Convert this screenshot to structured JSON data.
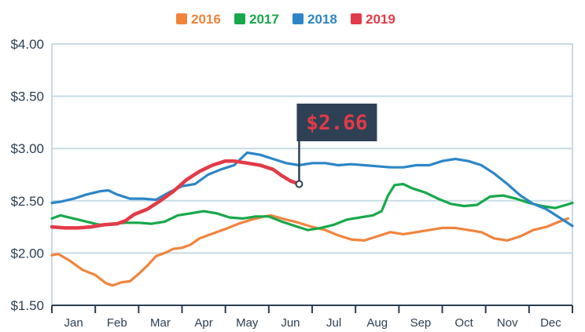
{
  "chart_data": {
    "type": "line",
    "ylim": [
      1.5,
      4.0
    ],
    "y_ticks": [
      "$1.50",
      "$2.00",
      "$2.50",
      "$3.00",
      "$3.50",
      "$4.00"
    ],
    "y_tick_values": [
      1.5,
      2.0,
      2.5,
      3.0,
      3.5,
      4.0
    ],
    "months": [
      "Jan",
      "Feb",
      "Mar",
      "Apr",
      "May",
      "Jun",
      "Jul",
      "Aug",
      "Sep",
      "Oct",
      "Nov",
      "Dec"
    ],
    "x_unit": "month (0 = Jan 1, 12 = Dec 31)",
    "xlim": [
      0,
      12
    ],
    "grid": true,
    "legend_position": "top-center",
    "series": [
      {
        "name": "2016",
        "color": "#f0843c",
        "points": [
          [
            0,
            1.98
          ],
          [
            0.15,
            1.99
          ],
          [
            0.4,
            1.93
          ],
          [
            0.7,
            1.84
          ],
          [
            1.0,
            1.79
          ],
          [
            1.25,
            1.71
          ],
          [
            1.4,
            1.69
          ],
          [
            1.6,
            1.72
          ],
          [
            1.8,
            1.73
          ],
          [
            2.0,
            1.8
          ],
          [
            2.2,
            1.88
          ],
          [
            2.4,
            1.97
          ],
          [
            2.6,
            2.0
          ],
          [
            2.8,
            2.04
          ],
          [
            3.0,
            2.05
          ],
          [
            3.2,
            2.08
          ],
          [
            3.4,
            2.14
          ],
          [
            3.6,
            2.17
          ],
          [
            3.8,
            2.2
          ],
          [
            4.0,
            2.23
          ],
          [
            4.3,
            2.28
          ],
          [
            4.6,
            2.32
          ],
          [
            4.9,
            2.35
          ],
          [
            5.05,
            2.36
          ],
          [
            5.3,
            2.33
          ],
          [
            5.6,
            2.3
          ],
          [
            6.0,
            2.25
          ],
          [
            6.3,
            2.22
          ],
          [
            6.6,
            2.17
          ],
          [
            6.9,
            2.13
          ],
          [
            7.2,
            2.12
          ],
          [
            7.5,
            2.16
          ],
          [
            7.8,
            2.2
          ],
          [
            8.1,
            2.18
          ],
          [
            8.4,
            2.2
          ],
          [
            8.7,
            2.22
          ],
          [
            9.0,
            2.24
          ],
          [
            9.3,
            2.24
          ],
          [
            9.6,
            2.22
          ],
          [
            9.9,
            2.2
          ],
          [
            10.2,
            2.14
          ],
          [
            10.5,
            2.12
          ],
          [
            10.8,
            2.16
          ],
          [
            11.1,
            2.22
          ],
          [
            11.4,
            2.25
          ],
          [
            11.7,
            2.3
          ],
          [
            11.9,
            2.33
          ]
        ]
      },
      {
        "name": "2017",
        "color": "#17a84a",
        "points": [
          [
            0,
            2.33
          ],
          [
            0.2,
            2.36
          ],
          [
            0.5,
            2.33
          ],
          [
            0.8,
            2.3
          ],
          [
            1.1,
            2.27
          ],
          [
            1.4,
            2.28
          ],
          [
            1.7,
            2.29
          ],
          [
            2.0,
            2.29
          ],
          [
            2.3,
            2.28
          ],
          [
            2.6,
            2.3
          ],
          [
            2.9,
            2.36
          ],
          [
            3.2,
            2.38
          ],
          [
            3.5,
            2.4
          ],
          [
            3.8,
            2.38
          ],
          [
            4.1,
            2.34
          ],
          [
            4.4,
            2.33
          ],
          [
            4.7,
            2.35
          ],
          [
            5.0,
            2.35
          ],
          [
            5.3,
            2.3
          ],
          [
            5.6,
            2.26
          ],
          [
            5.9,
            2.22
          ],
          [
            6.2,
            2.24
          ],
          [
            6.5,
            2.27
          ],
          [
            6.8,
            2.32
          ],
          [
            7.1,
            2.34
          ],
          [
            7.4,
            2.36
          ],
          [
            7.6,
            2.4
          ],
          [
            7.75,
            2.55
          ],
          [
            7.9,
            2.65
          ],
          [
            8.1,
            2.66
          ],
          [
            8.3,
            2.62
          ],
          [
            8.6,
            2.58
          ],
          [
            8.9,
            2.52
          ],
          [
            9.2,
            2.47
          ],
          [
            9.5,
            2.45
          ],
          [
            9.8,
            2.46
          ],
          [
            10.1,
            2.54
          ],
          [
            10.4,
            2.55
          ],
          [
            10.7,
            2.52
          ],
          [
            11.0,
            2.48
          ],
          [
            11.3,
            2.45
          ],
          [
            11.6,
            2.43
          ],
          [
            11.85,
            2.46
          ],
          [
            12.0,
            2.48
          ]
        ]
      },
      {
        "name": "2018",
        "color": "#2c86c6",
        "points": [
          [
            0,
            2.48
          ],
          [
            0.2,
            2.49
          ],
          [
            0.5,
            2.52
          ],
          [
            0.8,
            2.56
          ],
          [
            1.1,
            2.59
          ],
          [
            1.3,
            2.6
          ],
          [
            1.5,
            2.56
          ],
          [
            1.8,
            2.52
          ],
          [
            2.1,
            2.52
          ],
          [
            2.4,
            2.51
          ],
          [
            2.7,
            2.58
          ],
          [
            3.0,
            2.64
          ],
          [
            3.3,
            2.66
          ],
          [
            3.6,
            2.75
          ],
          [
            3.9,
            2.8
          ],
          [
            4.2,
            2.84
          ],
          [
            4.5,
            2.96
          ],
          [
            4.8,
            2.94
          ],
          [
            5.1,
            2.9
          ],
          [
            5.4,
            2.86
          ],
          [
            5.7,
            2.84
          ],
          [
            6.0,
            2.86
          ],
          [
            6.3,
            2.86
          ],
          [
            6.6,
            2.84
          ],
          [
            6.9,
            2.85
          ],
          [
            7.2,
            2.84
          ],
          [
            7.5,
            2.83
          ],
          [
            7.8,
            2.82
          ],
          [
            8.1,
            2.82
          ],
          [
            8.4,
            2.84
          ],
          [
            8.7,
            2.84
          ],
          [
            9.0,
            2.88
          ],
          [
            9.3,
            2.9
          ],
          [
            9.6,
            2.88
          ],
          [
            9.9,
            2.84
          ],
          [
            10.2,
            2.76
          ],
          [
            10.5,
            2.66
          ],
          [
            10.8,
            2.55
          ],
          [
            11.1,
            2.47
          ],
          [
            11.4,
            2.42
          ],
          [
            11.7,
            2.34
          ],
          [
            12.0,
            2.26
          ]
        ]
      },
      {
        "name": "2019",
        "color": "#e23a48",
        "points": [
          [
            0,
            2.25
          ],
          [
            0.3,
            2.24
          ],
          [
            0.6,
            2.24
          ],
          [
            0.9,
            2.25
          ],
          [
            1.2,
            2.27
          ],
          [
            1.5,
            2.28
          ],
          [
            1.7,
            2.31
          ],
          [
            1.9,
            2.37
          ],
          [
            2.2,
            2.42
          ],
          [
            2.5,
            2.5
          ],
          [
            2.8,
            2.59
          ],
          [
            3.1,
            2.7
          ],
          [
            3.4,
            2.78
          ],
          [
            3.7,
            2.84
          ],
          [
            4.0,
            2.88
          ],
          [
            4.2,
            2.88
          ],
          [
            4.5,
            2.86
          ],
          [
            4.8,
            2.84
          ],
          [
            5.1,
            2.8
          ],
          [
            5.3,
            2.74
          ],
          [
            5.5,
            2.69
          ],
          [
            5.7,
            2.66
          ]
        ]
      }
    ]
  },
  "annotation": {
    "label": "$2.66",
    "month": 5.7,
    "value": 2.66,
    "flag_color": "#2e4154",
    "text_color": "#e23a48"
  },
  "colors": {
    "plot_border": "#c7dbe6",
    "grid": "#c7dbe6",
    "axis": "#2b3f52"
  }
}
